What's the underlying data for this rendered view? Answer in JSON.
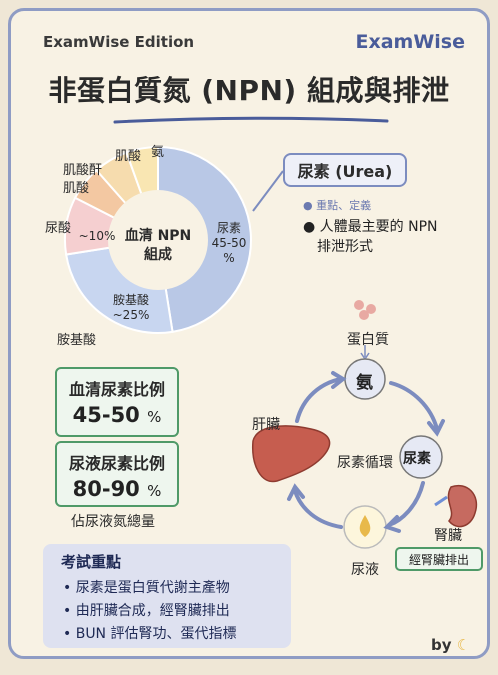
{
  "header": {
    "edition": "ExamWise Edition",
    "brand": "ExamWise",
    "title": "非蛋白質氮 (NPN) 組成與排泄"
  },
  "chart_data": {
    "type": "pie",
    "center_label": "血清 NPN\n組成",
    "slices": [
      {
        "name": "尿素",
        "value": 47.5,
        "color": "#b9c8e6"
      },
      {
        "name": "胺基酸",
        "value": 25,
        "color": "#c8d6f0"
      },
      {
        "name": "尿酸",
        "value": 10,
        "color": "#f5cfd0"
      },
      {
        "name": "肌酸酐",
        "value": 6,
        "color": "#f3c8a2"
      },
      {
        "name": "肌酸",
        "value": 6,
        "color": "#f6dcae"
      },
      {
        "name": "氨",
        "value": 5.5,
        "color": "#f9e6b2"
      }
    ]
  },
  "donut_labels": {
    "urea_inner": "尿素",
    "urea_pct": "45-50",
    "urea_pct_unit": "%",
    "amino_inner": "胺基酸",
    "amino_pct": "~25%",
    "uric_inner": "~10%",
    "amino_outer": "胺基酸",
    "uric_outer": "尿酸",
    "creatinine_outer": "肌酸酐",
    "creatine_outer": "肌酸",
    "creatine_top": "肌酸",
    "ammonia_top": "氨"
  },
  "urea_callout": {
    "title": "尿素 (Urea)",
    "sub": "● 重點、定義",
    "desc_line1": "● 人體最主要的 NPN",
    "desc_line2": "排泄形式"
  },
  "stats": {
    "serum_title": "血清尿素比例",
    "serum_value": "45-50",
    "serum_unit": "%",
    "urine_title": "尿液尿素比例",
    "urine_value": "80-90",
    "urine_unit": "%",
    "urine_note": "佔尿液氮總量"
  },
  "key_points": {
    "title": "考試重點",
    "items": [
      "• 尿素是蛋白質代謝主產物",
      "• 由肝臟合成，經腎臟排出",
      "• BUN 評估腎功、蛋代指標"
    ]
  },
  "cycle": {
    "protein": "蛋白質",
    "ammonia": "氨",
    "urea": "尿素",
    "liver": "肝臟",
    "center": "尿素循環",
    "urine": "尿液",
    "kidney": "腎臟",
    "kidney_note": "經腎臟排出"
  },
  "footer": {
    "by": "by"
  },
  "colors": {
    "accent_blue": "#4a5c9a",
    "accent_green": "#4f9a68",
    "underline": "#4a5c9a"
  }
}
